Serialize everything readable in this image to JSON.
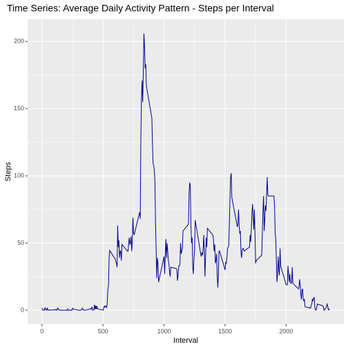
{
  "chart_data": {
    "type": "line",
    "title": "Time Series: Average Daily Activity Pattern - Steps per Interval",
    "x_label": "Interval",
    "y_label": "Steps",
    "xlim": [
      -117.75,
      2472.75
    ],
    "ylim": [
      -10.3,
      216.5
    ],
    "xticks": [
      0,
      500,
      1000,
      1500,
      2000
    ],
    "yticks": [
      0,
      50,
      100,
      150,
      200
    ],
    "grid": true,
    "x": [
      0,
      5,
      10,
      15,
      20,
      25,
      30,
      35,
      40,
      45,
      50,
      55,
      100,
      105,
      110,
      115,
      120,
      125,
      130,
      135,
      140,
      145,
      150,
      155,
      200,
      205,
      210,
      215,
      220,
      225,
      230,
      235,
      240,
      245,
      250,
      255,
      300,
      305,
      310,
      315,
      320,
      325,
      330,
      335,
      340,
      345,
      350,
      355,
      400,
      405,
      410,
      415,
      420,
      425,
      430,
      435,
      440,
      445,
      450,
      455,
      500,
      505,
      510,
      515,
      520,
      525,
      530,
      535,
      540,
      545,
      550,
      555,
      600,
      605,
      610,
      615,
      620,
      625,
      630,
      635,
      640,
      645,
      650,
      655,
      700,
      705,
      710,
      715,
      720,
      725,
      730,
      735,
      740,
      745,
      750,
      755,
      800,
      805,
      810,
      815,
      820,
      825,
      830,
      835,
      840,
      845,
      850,
      855,
      900,
      905,
      910,
      915,
      920,
      925,
      930,
      935,
      940,
      945,
      950,
      955,
      1000,
      1005,
      1010,
      1015,
      1020,
      1025,
      1030,
      1035,
      1040,
      1045,
      1050,
      1055,
      1100,
      1105,
      1110,
      1115,
      1120,
      1125,
      1130,
      1135,
      1140,
      1145,
      1150,
      1155,
      1200,
      1205,
      1210,
      1215,
      1220,
      1225,
      1230,
      1235,
      1240,
      1245,
      1250,
      1255,
      1300,
      1305,
      1310,
      1315,
      1320,
      1325,
      1330,
      1335,
      1340,
      1345,
      1350,
      1355,
      1400,
      1405,
      1410,
      1415,
      1420,
      1425,
      1430,
      1435,
      1440,
      1445,
      1450,
      1455,
      1500,
      1505,
      1510,
      1515,
      1520,
      1525,
      1530,
      1535,
      1540,
      1545,
      1550,
      1555,
      1600,
      1605,
      1610,
      1615,
      1620,
      1625,
      1630,
      1635,
      1640,
      1645,
      1650,
      1655,
      1700,
      1705,
      1710,
      1715,
      1720,
      1725,
      1730,
      1735,
      1740,
      1745,
      1750,
      1755,
      1800,
      1805,
      1810,
      1815,
      1820,
      1825,
      1830,
      1835,
      1840,
      1845,
      1850,
      1855,
      1900,
      1905,
      1910,
      1915,
      1920,
      1925,
      1930,
      1935,
      1940,
      1945,
      1950,
      1955,
      2000,
      2005,
      2010,
      2015,
      2020,
      2025,
      2030,
      2035,
      2040,
      2045,
      2050,
      2055,
      2100,
      2105,
      2110,
      2115,
      2120,
      2125,
      2130,
      2135,
      2140,
      2145,
      2150,
      2155,
      2200,
      2205,
      2210,
      2215,
      2220,
      2225,
      2230,
      2235,
      2240,
      2245,
      2250,
      2255,
      2300,
      2305,
      2310,
      2315,
      2320,
      2325,
      2330,
      2335,
      2340,
      2345,
      2350,
      2355
    ],
    "series": [
      {
        "name": "Steps",
        "color": "#00008b",
        "values": [
          1.7,
          0.3,
          0.1,
          0.2,
          0.1,
          2.1,
          0.5,
          0.9,
          0,
          1.5,
          0.3,
          0.1,
          0.3,
          0.7,
          0.2,
          0.3,
          0,
          1.1,
          1.8,
          0.2,
          0.2,
          0.4,
          0.3,
          0,
          0,
          0,
          1.1,
          0,
          0,
          0.1,
          0,
          0.2,
          0,
          0,
          1.5,
          0.9,
          0,
          0,
          0,
          0,
          0.2,
          0.6,
          1.6,
          0.6,
          0.5,
          0.1,
          0,
          0,
          1.2,
          0.9,
          2.6,
          0,
          0.3,
          0.4,
          4.1,
          0.7,
          3.5,
          0.8,
          3.1,
          1.1,
          0,
          1.6,
          3,
          2.2,
          3.3,
          3,
          2.1,
          6,
          16,
          18.3,
          39.5,
          44.5,
          38,
          36,
          35,
          32,
          63,
          47,
          52,
          39,
          44,
          44,
          37,
          49,
          44,
          44,
          50,
          54,
          49,
          50,
          55,
          44,
          52,
          69,
          58,
          56,
          73,
          68,
          129,
          158,
          171,
          155,
          177,
          206,
          196,
          180,
          183,
          167,
          143,
          124,
          109,
          108,
          104,
          96,
          66,
          45,
          24,
          39,
          35,
          21,
          40,
          27,
          42,
          53,
          39,
          50,
          44,
          37,
          35,
          28,
          25,
          32,
          31,
          30,
          22,
          26,
          33,
          33,
          34,
          50,
          42,
          44,
          46,
          59,
          64,
          88,
          95,
          93,
          63,
          50,
          54,
          32,
          27,
          38,
          45,
          67,
          42,
          40,
          43,
          41,
          46,
          56,
          43,
          25,
          40,
          54,
          47,
          61,
          56,
          52,
          44,
          49,
          35,
          37,
          42,
          27,
          17,
          26,
          44,
          44,
          30,
          36,
          35,
          39,
          46,
          47,
          48,
          65,
          83,
          99,
          102,
          84,
          62,
          64,
          75,
          63,
          57,
          59,
          43,
          39,
          45,
          46,
          46,
          44,
          47,
          56,
          51,
          61,
          73,
          79,
          69,
          60,
          75,
          57,
          35,
          37,
          41,
          58,
          74,
          85,
          59,
          68,
          78,
          74,
          86,
          99,
          86,
          85,
          85,
          78,
          58,
          53,
          36,
          21,
          27,
          40,
          30,
          26,
          46,
          33,
          19,
          19,
          19,
          33,
          27,
          21,
          27,
          21,
          20,
          21,
          32,
          20,
          16,
          17,
          23,
          19,
          12,
          8,
          15,
          16,
          8,
          7,
          8,
          2.6,
          1.5,
          3.7,
          4.8,
          8.5,
          7.1,
          8.7,
          9.8,
          2.2,
          0.3,
          0.1,
          1.6,
          4.6,
          3.3,
          2.8,
          0,
          0.8,
          1,
          1.6,
          2.6,
          4.7,
          3.3,
          0.6,
          0.2,
          1.1
        ]
      }
    ]
  }
}
